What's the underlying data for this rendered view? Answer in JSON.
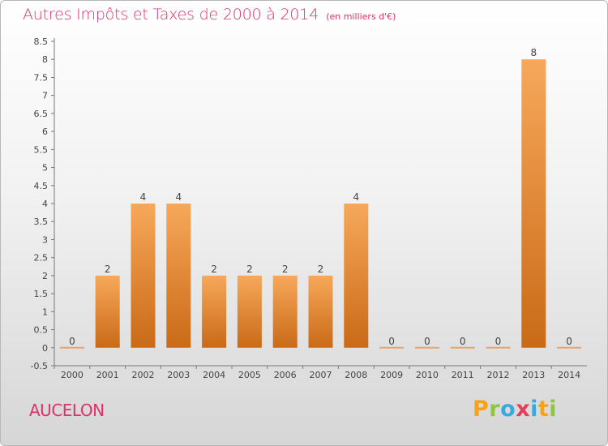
{
  "header": {
    "title": "Autres Impôts et Taxes de 2000 à 2014",
    "unit": "(en milliers d'€)"
  },
  "footer": {
    "commune": "AUCELON",
    "brand": "Proxiti",
    "brand_letters": [
      "P",
      "r",
      "o",
      "x",
      "i",
      "t",
      "i"
    ],
    "brand_colors": [
      "#f6a21d",
      "#8ec63f",
      "#39a9e0",
      "#e53d5d",
      "#39a9e0",
      "#f6a21d",
      "#8ec63f"
    ]
  },
  "colors": {
    "bar_top": "#f7a85a",
    "bar_bottom": "#c96a17",
    "zero_line": "#e8a56a",
    "title": "#e0306a"
  },
  "chart_data": {
    "type": "bar",
    "title": "Autres Impôts et Taxes de 2000 à 2014",
    "subtitle": "(en milliers d'€)",
    "categories": [
      "2000",
      "2001",
      "2002",
      "2003",
      "2004",
      "2005",
      "2006",
      "2007",
      "2008",
      "2009",
      "2010",
      "2011",
      "2012",
      "2013",
      "2014"
    ],
    "values": [
      0,
      2,
      4,
      4,
      2,
      2,
      2,
      2,
      4,
      0,
      0,
      0,
      0,
      8,
      0
    ],
    "data_labels": [
      "0",
      "2",
      "4",
      "4",
      "2",
      "2",
      "2",
      "2",
      "4",
      "0",
      "0",
      "0",
      "0",
      "8",
      "0"
    ],
    "y_ticks": [
      "-0.5",
      "0",
      "0.5",
      "1",
      "1.5",
      "2",
      "2.5",
      "3",
      "3.5",
      "4",
      "4.5",
      "5",
      "5.5",
      "6",
      "6.5",
      "7",
      "7.5",
      "8",
      "8.5"
    ],
    "ylim": [
      -0.5,
      8.5
    ],
    "grid": false,
    "legend": "none"
  }
}
